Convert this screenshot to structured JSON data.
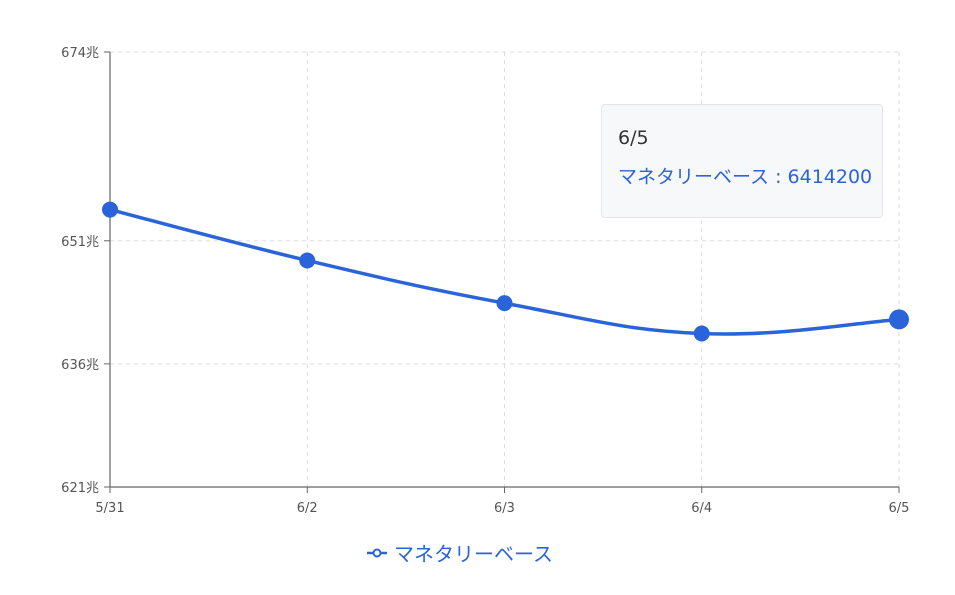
{
  "chart_data": {
    "type": "line",
    "categories": [
      "5/31",
      "6/2",
      "6/3",
      "6/4",
      "6/5"
    ],
    "series": [
      {
        "name": "マネタリーベース",
        "values": [
          6548000,
          6486000,
          6434000,
          6397000,
          6414200
        ]
      }
    ],
    "y_ticks": [
      {
        "value": 6210000,
        "label": "621兆"
      },
      {
        "value": 6360000,
        "label": "636兆"
      },
      {
        "value": 6510000,
        "label": "651兆"
      },
      {
        "value": 6740000,
        "label": "674兆"
      }
    ],
    "ylim": [
      6210000,
      6740000
    ],
    "grid": true,
    "legend_position": "bottom-center",
    "color": "#2b64d9",
    "tooltip": {
      "title": "6/5",
      "row": "マネタリーベース : 6414200"
    }
  },
  "legend": {
    "label": "マネタリーベース",
    "icon": "line-circle-icon"
  }
}
